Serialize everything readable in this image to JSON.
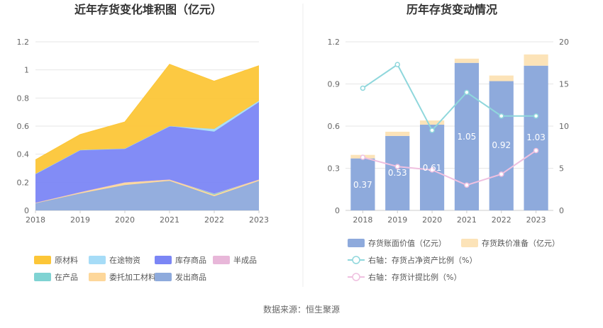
{
  "source_label": "数据来源：恒生聚源",
  "chart_data": [
    {
      "type": "area",
      "stacked": true,
      "title": "近年存货变化堆积图（亿元）",
      "x": [
        "2018",
        "2019",
        "2020",
        "2021",
        "2022",
        "2023"
      ],
      "ylim": [
        0,
        1.2
      ],
      "yticks": [
        "0",
        "0.2",
        "0.4",
        "0.6",
        "0.8",
        "1",
        "1.2"
      ],
      "grid": true,
      "legend_position": "bottom",
      "series": [
        {
          "name": "发出商品",
          "color": "#8eaadc",
          "values": [
            0.05,
            0.12,
            0.18,
            0.21,
            0.1,
            0.21
          ]
        },
        {
          "name": "委托加工材料",
          "color": "#fdd79a",
          "values": [
            0.005,
            0.01,
            0.02,
            0.01,
            0.01,
            0.01
          ]
        },
        {
          "name": "在产品",
          "color": "#7fd3d3",
          "values": [
            0.0,
            0.0,
            0.0,
            0.0,
            0.01,
            0.0
          ]
        },
        {
          "name": "半成品",
          "color": "#e8b7d9",
          "values": [
            0.0,
            0.0,
            0.0,
            0.0,
            0.0,
            0.0
          ]
        },
        {
          "name": "库存商品",
          "color": "#7b86f5",
          "values": [
            0.205,
            0.3,
            0.24,
            0.38,
            0.44,
            0.55
          ]
        },
        {
          "name": "在途物资",
          "color": "#a6dcf7",
          "values": [
            0.0,
            0.0,
            0.0,
            0.0,
            0.02,
            0.01
          ]
        },
        {
          "name": "原材料",
          "color": "#fcc638",
          "values": [
            0.1,
            0.11,
            0.19,
            0.44,
            0.34,
            0.25
          ]
        }
      ],
      "legend_order": [
        "原材料",
        "在途物资",
        "库存商品",
        "半成品",
        "在产品",
        "委托加工材料",
        "发出商品"
      ]
    },
    {
      "type": "bar",
      "stacked": true,
      "title": "历年存货变动情况",
      "categories": [
        "2018",
        "2019",
        "2020",
        "2021",
        "2022",
        "2023"
      ],
      "ylim": [
        0,
        1.2
      ],
      "yticks": [
        "0",
        "0.3",
        "0.6",
        "0.9",
        "1.2"
      ],
      "y2lim": [
        0,
        20
      ],
      "y2ticks": [
        "0",
        "5",
        "10",
        "15",
        "20"
      ],
      "grid": true,
      "legend_position": "bottom",
      "series": [
        {
          "name": "存货账面价值（亿元）",
          "color": "#8eaadc",
          "values": [
            0.37,
            0.53,
            0.61,
            1.05,
            0.92,
            1.03
          ],
          "labels": [
            "0.37",
            "0.53",
            "0.61",
            "1.05",
            "0.92",
            "1.03"
          ]
        },
        {
          "name": "存货跌价准备（亿元）",
          "color": "#fce3b8",
          "values": [
            0.025,
            0.03,
            0.03,
            0.03,
            0.04,
            0.08
          ]
        }
      ],
      "line_series": [
        {
          "name": "右轴：存货占净资产比例（%）",
          "color": "#8fd7dc",
          "axis": "right",
          "values": [
            14.5,
            17.3,
            9.5,
            14.0,
            11.2,
            11.2
          ]
        },
        {
          "name": "右轴：存货计提比例（%）",
          "color": "#efc0e0",
          "axis": "right",
          "values": [
            6.3,
            5.2,
            4.8,
            3.0,
            4.3,
            7.1
          ]
        }
      ]
    }
  ]
}
